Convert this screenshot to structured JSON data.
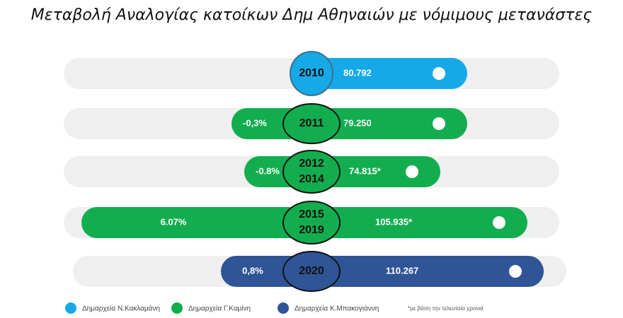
{
  "title": "Μεταβολή Αναλογίας κατοίκων Δημ Αθηναιών με νόμιμους μετανάστες",
  "rows": [
    {
      "year_lines": [
        "2010"
      ],
      "value": "80.792",
      "legend_item": 0
    },
    {
      "change": "-0,3%",
      "year_lines": [
        "2011"
      ],
      "value": "79.250",
      "legend_item": 1
    },
    {
      "change": "-0.8%",
      "year_lines": [
        "2012",
        "2014"
      ],
      "value": "74.815*",
      "legend_item": 1
    },
    {
      "change": "6.07%",
      "year_lines": [
        "2015",
        "2019"
      ],
      "value": "105.935*",
      "legend_item": 1
    },
    {
      "change": "0,8%",
      "year_lines": [
        "2020"
      ],
      "value": "110.267",
      "legend_item": 2
    }
  ],
  "legend": [
    {
      "label": "Δημαρχεία Ν.Κακλαμάνη",
      "color": "#16a9e8"
    },
    {
      "label": "Δημαρχεία Γ.Καμίνη",
      "color": "#12ad4f"
    },
    {
      "label": "Δημαρχεία Κ.Μπακογιάννη",
      "color": "#2f5597"
    }
  ],
  "footnote": "*με βάση την τελευταία χρονιά"
}
